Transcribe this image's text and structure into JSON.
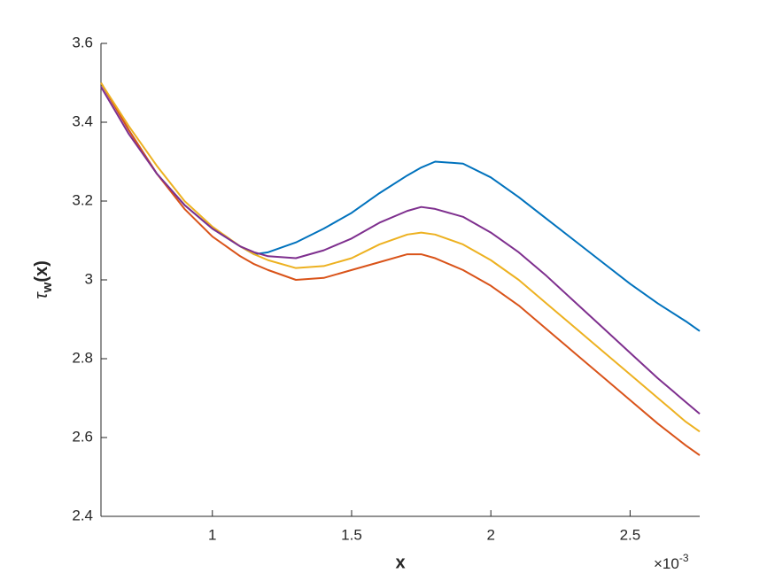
{
  "chart_data": {
    "type": "line",
    "xlabel": "x",
    "ylabel": {
      "symbol": "τ",
      "subscript": "w",
      "rest": "(x)"
    },
    "x_multiplier": {
      "base": "×10",
      "exponent": "-3"
    },
    "x": [
      0.6,
      0.7,
      0.8,
      0.9,
      1.0,
      1.1,
      1.15,
      1.2,
      1.3,
      1.4,
      1.5,
      1.6,
      1.7,
      1.75,
      1.8,
      1.9,
      2.0,
      2.1,
      2.2,
      2.3,
      2.4,
      2.5,
      2.6,
      2.7,
      2.75
    ],
    "series": [
      {
        "color": "#0072bd",
        "values": [
          3.5,
          3.38,
          3.27,
          3.19,
          3.13,
          3.085,
          3.065,
          3.07,
          3.095,
          3.13,
          3.17,
          3.22,
          3.265,
          3.285,
          3.3,
          3.295,
          3.26,
          3.21,
          3.155,
          3.1,
          3.045,
          2.99,
          2.94,
          2.895,
          2.87
        ]
      },
      {
        "color": "#d95319",
        "values": [
          3.5,
          3.38,
          3.27,
          3.18,
          3.11,
          3.06,
          3.04,
          3.025,
          3.0,
          3.005,
          3.025,
          3.045,
          3.065,
          3.065,
          3.055,
          3.025,
          2.985,
          2.935,
          2.875,
          2.815,
          2.755,
          2.695,
          2.635,
          2.58,
          2.555
        ]
      },
      {
        "color": "#edb120",
        "values": [
          3.5,
          3.39,
          3.29,
          3.2,
          3.135,
          3.085,
          3.065,
          3.05,
          3.03,
          3.035,
          3.055,
          3.09,
          3.115,
          3.12,
          3.115,
          3.09,
          3.05,
          3.0,
          2.94,
          2.88,
          2.82,
          2.76,
          2.7,
          2.64,
          2.615
        ]
      },
      {
        "color": "#7e2f8e",
        "values": [
          3.49,
          3.37,
          3.27,
          3.19,
          3.13,
          3.085,
          3.07,
          3.06,
          3.055,
          3.075,
          3.105,
          3.145,
          3.175,
          3.185,
          3.18,
          3.16,
          3.12,
          3.07,
          3.01,
          2.945,
          2.88,
          2.815,
          2.75,
          2.69,
          2.66
        ]
      }
    ],
    "xlim": [
      0.6,
      2.75
    ],
    "xticks": [
      1,
      1.5,
      2,
      2.5
    ],
    "ylim": [
      2.4,
      3.6
    ],
    "yticks": [
      2.4,
      2.6,
      2.8,
      3,
      3.2,
      3.4,
      3.6
    ],
    "grid": false
  }
}
